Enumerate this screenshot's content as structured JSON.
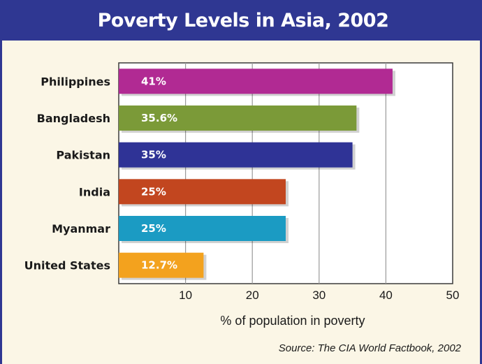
{
  "chart_data": {
    "type": "bar",
    "orientation": "horizontal",
    "title": "Poverty Levels in Asia, 2002",
    "categories": [
      "Philippines",
      "Bangladesh",
      "Pakistan",
      "India",
      "Myanmar",
      "United States"
    ],
    "values": [
      41,
      35.6,
      35,
      25,
      25,
      12.7
    ],
    "data_labels": [
      "41%",
      "35.6%",
      "35%",
      "25%",
      "25%",
      "12.7%"
    ],
    "colors": [
      "#b12a93",
      "#7b9a38",
      "#2f3396",
      "#c2461f",
      "#1b9bc3",
      "#f3a21e"
    ],
    "xlabel": "% of population in poverty",
    "ylabel": "",
    "xlim": [
      0,
      50
    ],
    "x_ticks": [
      10,
      20,
      30,
      40,
      50
    ],
    "grid": true,
    "source": "Source: The CIA World Factbook, 2002"
  },
  "theme": {
    "header_bg": "#2f3792",
    "panel_bg": "#fbf6e6",
    "plot_bg": "#ffffff"
  }
}
